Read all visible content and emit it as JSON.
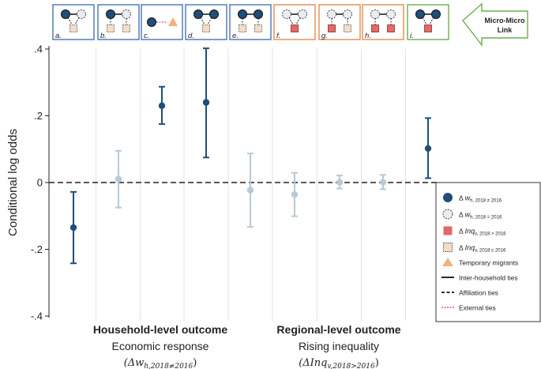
{
  "chart_data": {
    "type": "scatter",
    "subtype": "point-range (coefficient plot with error bars)",
    "ylabel": "Conditional log odds",
    "ylim": [
      -0.4,
      0.4
    ],
    "yticks": [
      -0.4,
      -0.2,
      0,
      0.2,
      0.4
    ],
    "ytick_labels": [
      "-.4",
      "-.2",
      "0",
      ".2",
      ".4"
    ],
    "reference_line": {
      "y": 0,
      "style": "dashed"
    },
    "categories": [
      "a.",
      "b.",
      "c.",
      "d.",
      "e.",
      "f.",
      "g.",
      "h.",
      "i."
    ],
    "points": [
      {
        "id": "a.",
        "estimate": -0.135,
        "ci_low": -0.242,
        "ci_high": -0.028,
        "significant": true,
        "panel_group": "household"
      },
      {
        "id": "b.",
        "estimate": 0.01,
        "ci_low": -0.075,
        "ci_high": 0.095,
        "significant": false,
        "panel_group": "household"
      },
      {
        "id": "c.",
        "estimate": 0.23,
        "ci_low": 0.175,
        "ci_high": 0.287,
        "significant": true,
        "panel_group": "household"
      },
      {
        "id": "d.",
        "estimate": 0.24,
        "ci_low": 0.075,
        "ci_high": 0.402,
        "significant": true,
        "panel_group": "household"
      },
      {
        "id": "e.",
        "estimate": -0.023,
        "ci_low": -0.133,
        "ci_high": 0.087,
        "significant": false,
        "panel_group": "household"
      },
      {
        "id": "f.",
        "estimate": -0.036,
        "ci_low": -0.101,
        "ci_high": 0.029,
        "significant": false,
        "panel_group": "regional"
      },
      {
        "id": "g.",
        "estimate": 0.001,
        "ci_low": -0.018,
        "ci_high": 0.021,
        "significant": false,
        "panel_group": "regional"
      },
      {
        "id": "h.",
        "estimate": 0.001,
        "ci_low": -0.02,
        "ci_high": 0.023,
        "significant": false,
        "panel_group": "regional"
      },
      {
        "id": "i.",
        "estimate": 0.102,
        "ci_low": 0.013,
        "ci_high": 0.193,
        "significant": true,
        "panel_group": "micro"
      }
    ],
    "x_groups": [
      {
        "title": "Household-level outcome",
        "subtitle": "Economic response",
        "formula": "(Δw"
      },
      {
        "title": "Regional-level outcome",
        "subtitle": "Rising inequality",
        "formula": "(ΔInq"
      }
    ],
    "legend": [
      {
        "symbol": "dark-circle",
        "label": "Δ w",
        "sub": "h, 2018 ≠ 2016"
      },
      {
        "symbol": "light-dashed-circle",
        "label": "Δ w",
        "sub": "h, 2018 = 2016"
      },
      {
        "symbol": "red-square",
        "label": "Δ Inq",
        "sub": "v, 2018 > 2016"
      },
      {
        "symbol": "light-dashed-square",
        "label": "Δ Inq",
        "sub": "v, 2018 ≤ 2016"
      },
      {
        "symbol": "orange-triangle",
        "label": "Temporary migrants",
        "sub": ""
      },
      {
        "symbol": "solid-line",
        "label": "Inter-household ties",
        "sub": ""
      },
      {
        "symbol": "dashed-line",
        "label": "Affiliation ties",
        "sub": ""
      },
      {
        "symbol": "red-dashed-line",
        "label": "External ties",
        "sub": ""
      }
    ],
    "callout": {
      "line1": "Micro-Micro",
      "line2": "Link"
    },
    "colors": {
      "significant": "#1f4e79",
      "nonsignificant": "#b8c9d9",
      "panel_blue": "#4a72b8",
      "panel_orange": "#e58a4e",
      "panel_green": "#6aaf4f",
      "inequality_square": "#e06a6a",
      "migrant": "#f2b27d"
    }
  },
  "household_formula_sub": "h,2018≠2016",
  "regional_formula_sub": "v,2018>2016"
}
